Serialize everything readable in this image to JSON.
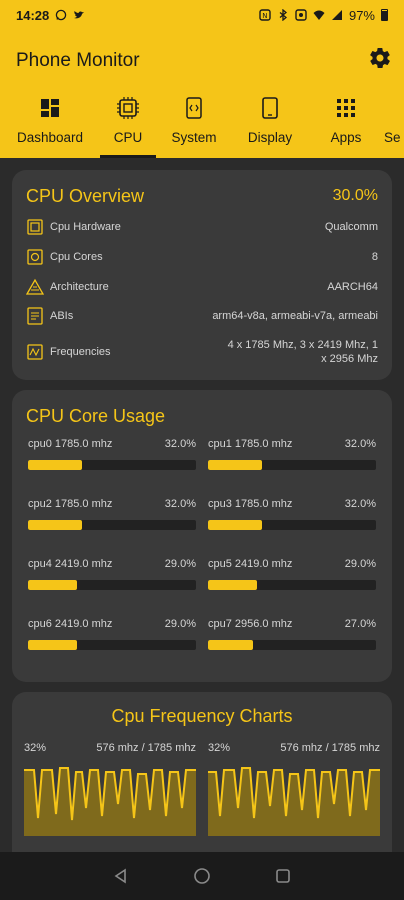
{
  "status_bar": {
    "time": "14:28",
    "battery": "97%"
  },
  "app": {
    "title": "Phone Monitor"
  },
  "tabs": [
    {
      "label": "Dashboard",
      "icon": "dashboard-icon"
    },
    {
      "label": "CPU",
      "icon": "chip-icon"
    },
    {
      "label": "System",
      "icon": "code-window-icon"
    },
    {
      "label": "Display",
      "icon": "phone-icon"
    },
    {
      "label": "Apps",
      "icon": "grid-icon"
    },
    {
      "label": "Se",
      "icon": ""
    }
  ],
  "cpu_overview": {
    "title": "CPU Overview",
    "usage": "30.0%",
    "rows": [
      {
        "label": "Cpu Hardware",
        "value": "Qualcomm",
        "icon": "chip-icon"
      },
      {
        "label": "Cpu Cores",
        "value": "8",
        "icon": "cores-icon"
      },
      {
        "label": "Architecture",
        "value": "AARCH64",
        "icon": "architecture-icon"
      },
      {
        "label": "ABIs",
        "value": "arm64-v8a, armeabi-v7a, armeabi",
        "icon": "abi-icon"
      },
      {
        "label": "Frequencies",
        "value_line1": "4 x 1785 Mhz, 3 x 2419 Mhz, 1",
        "value_line2": "x 2956 Mhz",
        "icon": "frequency-icon"
      }
    ]
  },
  "core_usage": {
    "title": "CPU Core Usage",
    "cores": [
      {
        "name": "cpu0 1785.0 mhz",
        "percent": "32.0%",
        "fraction": 0.32
      },
      {
        "name": "cpu1 1785.0 mhz",
        "percent": "32.0%",
        "fraction": 0.32
      },
      {
        "name": "cpu2 1785.0 mhz",
        "percent": "32.0%",
        "fraction": 0.32
      },
      {
        "name": "cpu3 1785.0 mhz",
        "percent": "32.0%",
        "fraction": 0.32
      },
      {
        "name": "cpu4 2419.0 mhz",
        "percent": "29.0%",
        "fraction": 0.29
      },
      {
        "name": "cpu5 2419.0 mhz",
        "percent": "29.0%",
        "fraction": 0.29
      },
      {
        "name": "cpu6 2419.0 mhz",
        "percent": "29.0%",
        "fraction": 0.29
      },
      {
        "name": "cpu7 2956.0 mhz",
        "percent": "27.0%",
        "fraction": 0.27
      }
    ]
  },
  "freq_charts": {
    "title": "Cpu Frequency Charts",
    "charts": [
      {
        "percent": "32%",
        "freq": "576 mhz / 1785 mhz"
      },
      {
        "percent": "32%",
        "freq": "576 mhz / 1785 mhz"
      }
    ]
  },
  "colors": {
    "accent": "#f5c518",
    "card": "#3a3a3a",
    "background": "#2b2b2b",
    "track": "#222222"
  }
}
